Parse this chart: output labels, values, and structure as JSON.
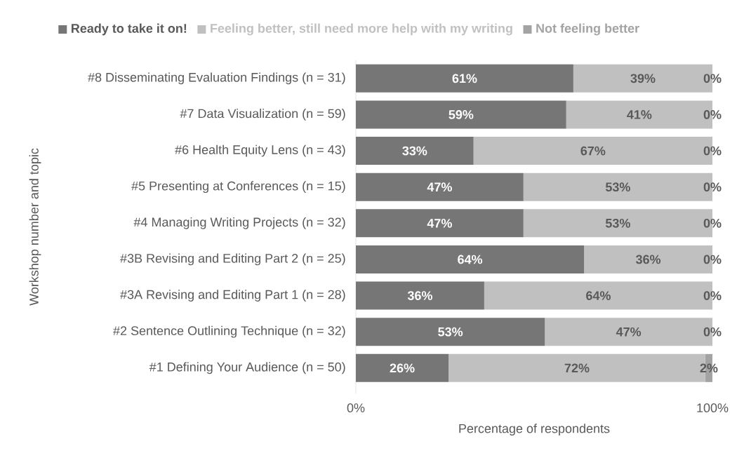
{
  "chart_data": {
    "type": "bar",
    "orientation": "horizontal",
    "stacked": true,
    "legend": "top",
    "xlabel": "Percentage of respondents",
    "ylabel": "Workshop number and topic",
    "categories": [
      "#8 Disseminating Evaluation Findings (n = 31)",
      "#7 Data Visualization (n = 59)",
      "#6 Health Equity Lens (n = 43)",
      "#5 Presenting at Conferences (n = 15)",
      "#4 Managing Writing Projects (n = 32)",
      "#3B Revising and Editing Part 2 (n = 25)",
      "#3A Revising and Editing Part 1 (n = 28)",
      "#2 Sentence Outlining Technique (n = 32)",
      "#1 Defining Your Audience (n = 50)"
    ],
    "xlim": [
      0,
      100
    ],
    "xticks": [
      {
        "value": 0,
        "label": "0%"
      },
      {
        "value": 100,
        "label": "100%"
      }
    ],
    "series": [
      {
        "name": "Ready to take it on!",
        "color": "#767676",
        "values": [
          61,
          59,
          33,
          47,
          47,
          64,
          36,
          53,
          26
        ],
        "value_labels": [
          "61%",
          "59%",
          "33%",
          "47%",
          "47%",
          "64%",
          "36%",
          "53%",
          "26%"
        ]
      },
      {
        "name": "Feeling better, still need more help with my writing",
        "color": "#c0c0c0",
        "values": [
          39,
          41,
          67,
          53,
          53,
          36,
          64,
          47,
          72
        ],
        "value_labels": [
          "39%",
          "41%",
          "67%",
          "53%",
          "53%",
          "36%",
          "64%",
          "47%",
          "72%"
        ]
      },
      {
        "name": "Not feeling better",
        "color": "#a3a3a3",
        "values": [
          0,
          0,
          0,
          0,
          0,
          0,
          0,
          0,
          2
        ],
        "value_labels": [
          "0%",
          "0%",
          "0%",
          "0%",
          "0%",
          "0%",
          "0%",
          "0%",
          "2%"
        ]
      }
    ]
  }
}
